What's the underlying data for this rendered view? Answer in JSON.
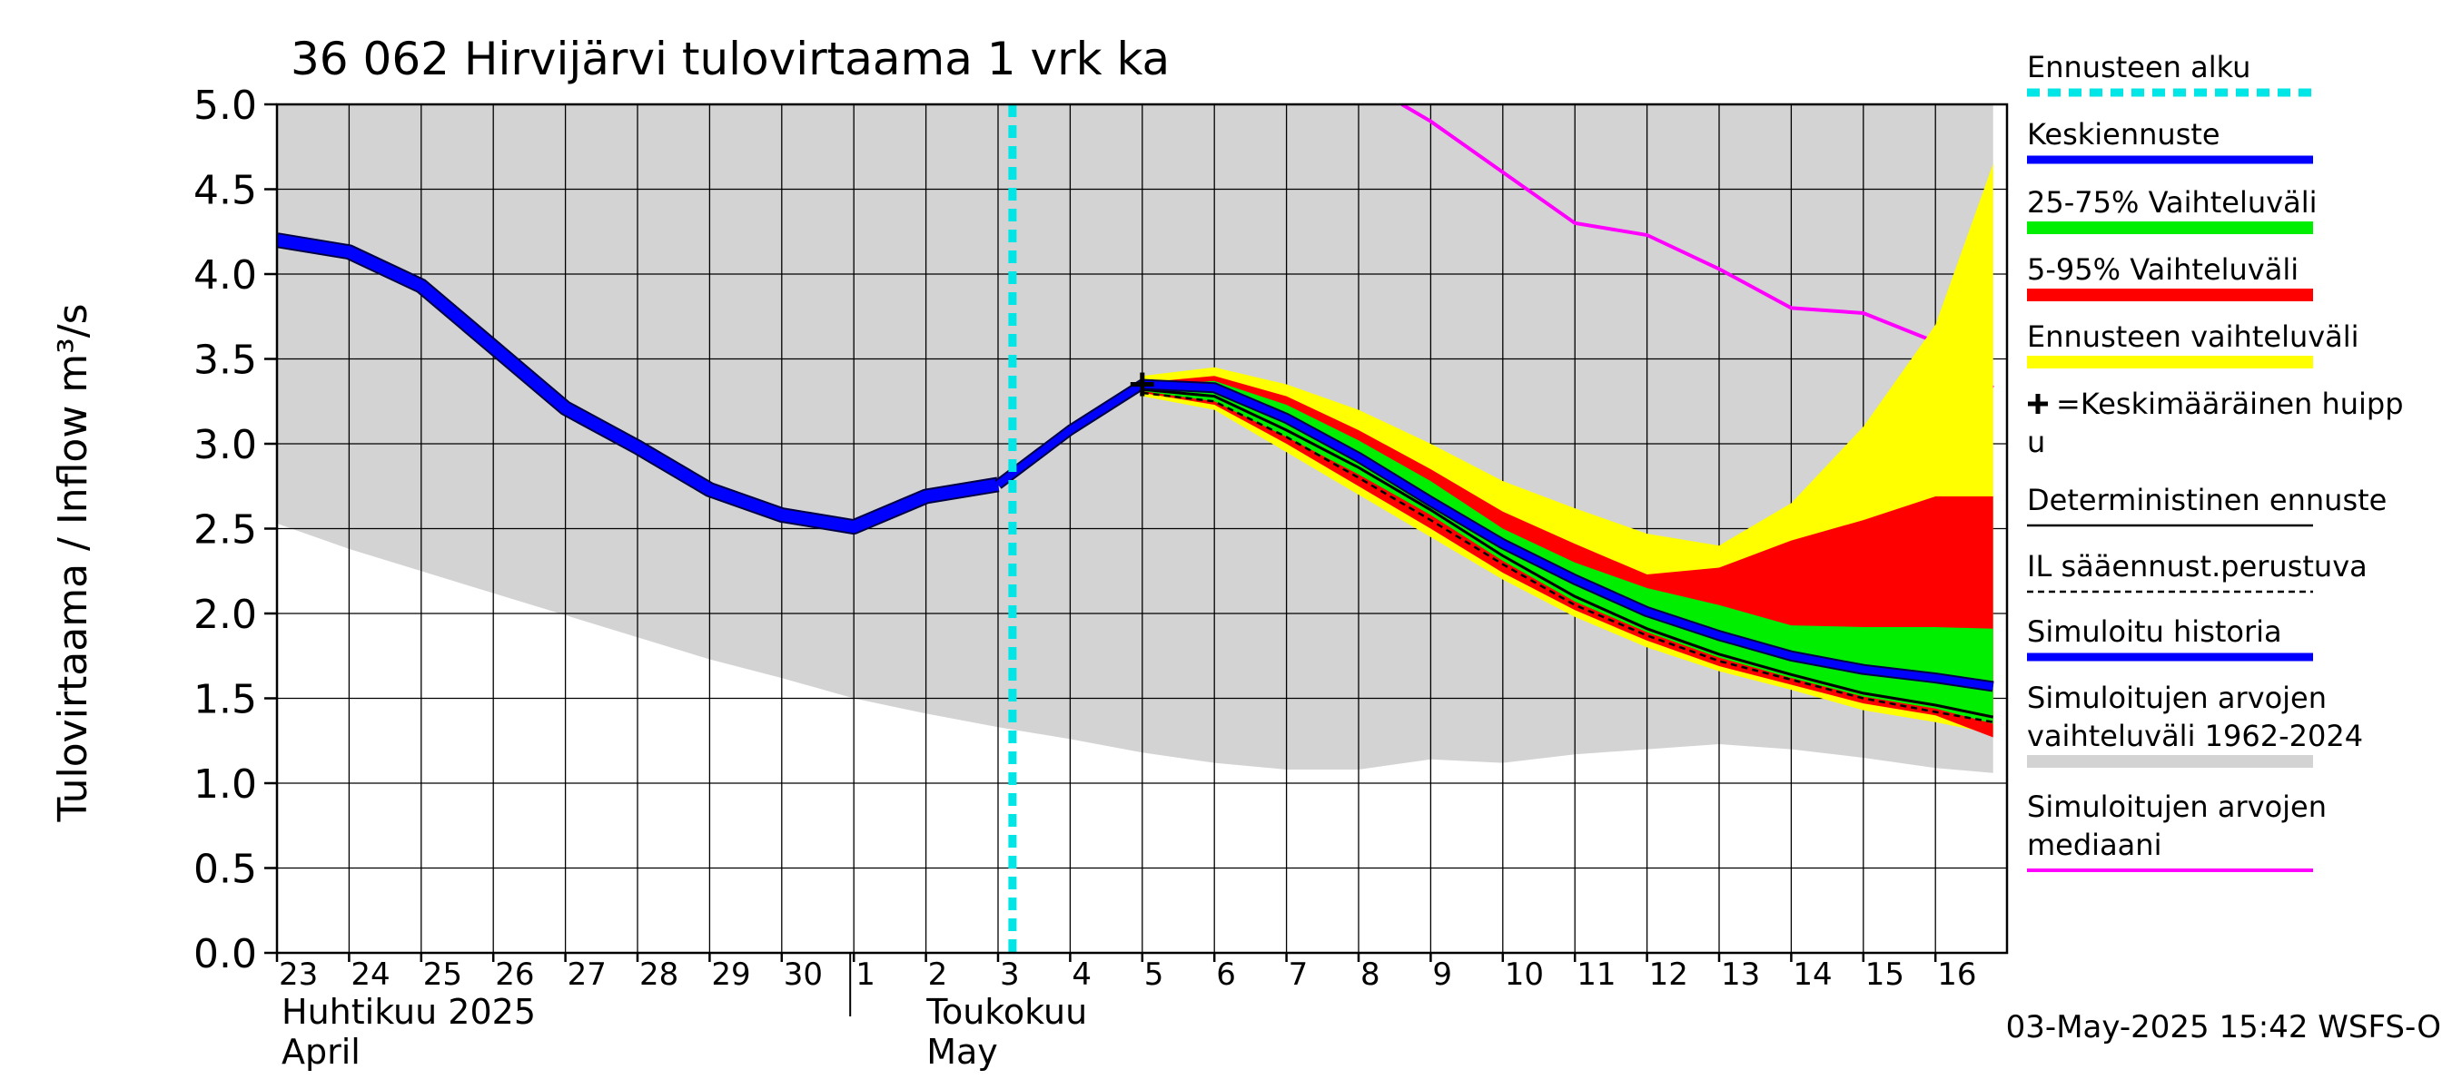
{
  "chart_data": {
    "type": "area",
    "title": "36 062 Hirvijärvi tulovirtaama 1 vrk ka",
    "ylabel": "Tulovirtaama / Inflow   m³/s",
    "ylim": [
      0,
      5
    ],
    "y_ticks": [
      "0.0",
      "0.5",
      "1.0",
      "1.5",
      "2.0",
      "2.5",
      "3.0",
      "3.5",
      "4.0",
      "4.5",
      "5.0"
    ],
    "x_day_labels": [
      "23",
      "24",
      "25",
      "26",
      "27",
      "28",
      "29",
      "30",
      "1",
      "2",
      "3",
      "4",
      "5",
      "6",
      "7",
      "8",
      "9",
      "10",
      "11",
      "12",
      "13",
      "14",
      "15",
      "16"
    ],
    "month_labels": [
      {
        "fi": "Huhtikuu  2025",
        "en": "April"
      },
      {
        "fi": "Toukokuu",
        "en": "May"
      }
    ],
    "forecast_start_day": 10.2,
    "grid": true,
    "series": {
      "hist_range": {
        "x": [
          0,
          1,
          2,
          3,
          4,
          5,
          6,
          7,
          8,
          9,
          10,
          11,
          12,
          13,
          14,
          15,
          16,
          17,
          18,
          19,
          20,
          21,
          22,
          23,
          23.8
        ],
        "upper": [
          5,
          5,
          5,
          5,
          5,
          5,
          5,
          5,
          5,
          5,
          5,
          5,
          5,
          5,
          5,
          5,
          5,
          5,
          5,
          5,
          5,
          5,
          5,
          5,
          5
        ],
        "lower": [
          2.53,
          2.38,
          2.25,
          2.12,
          1.99,
          1.86,
          1.73,
          1.62,
          1.5,
          1.41,
          1.33,
          1.26,
          1.18,
          1.12,
          1.08,
          1.08,
          1.14,
          1.12,
          1.17,
          1.2,
          1.23,
          1.2,
          1.15,
          1.09,
          1.06
        ]
      },
      "median": {
        "x": [
          15.6,
          16,
          17,
          18,
          19,
          20,
          21,
          22,
          23,
          23.8
        ],
        "y": [
          5.0,
          4.9,
          4.6,
          4.3,
          4.23,
          4.03,
          3.8,
          3.77,
          3.6,
          3.33
        ]
      },
      "forecast_range": {
        "x": [
          12,
          13,
          14,
          15,
          16,
          17,
          18,
          19,
          20,
          21,
          22,
          23,
          23.8
        ],
        "upper": [
          3.4,
          3.45,
          3.35,
          3.2,
          3.0,
          2.78,
          2.62,
          2.47,
          2.4,
          2.65,
          3.1,
          3.7,
          4.65
        ],
        "lower": [
          3.28,
          3.2,
          2.95,
          2.7,
          2.45,
          2.2,
          1.98,
          1.8,
          1.66,
          1.55,
          1.43,
          1.36,
          1.29
        ]
      },
      "range_5_95": {
        "x": [
          12,
          13,
          14,
          15,
          16,
          17,
          18,
          19,
          20,
          21,
          22,
          23,
          23.8
        ],
        "upper": [
          3.36,
          3.4,
          3.28,
          3.08,
          2.85,
          2.6,
          2.41,
          2.23,
          2.27,
          2.43,
          2.55,
          2.69,
          2.69
        ],
        "lower": [
          3.3,
          3.23,
          3.0,
          2.75,
          2.5,
          2.24,
          2.02,
          1.84,
          1.69,
          1.58,
          1.47,
          1.4,
          1.27
        ]
      },
      "range_25_75": {
        "x": [
          12,
          13,
          14,
          15,
          16,
          17,
          18,
          19,
          20,
          21,
          22,
          23,
          23.8
        ],
        "upper": [
          3.34,
          3.37,
          3.23,
          3.02,
          2.78,
          2.5,
          2.3,
          2.15,
          2.05,
          1.93,
          1.92,
          1.92,
          1.91
        ],
        "lower": [
          3.31,
          3.25,
          3.04,
          2.82,
          2.58,
          2.31,
          2.07,
          1.89,
          1.74,
          1.62,
          1.51,
          1.44,
          1.35
        ]
      },
      "simulated_history": {
        "x": [
          0,
          1,
          2,
          3,
          4,
          5,
          6,
          7,
          8,
          9,
          10
        ],
        "y": [
          4.2,
          4.13,
          3.93,
          3.57,
          3.21,
          2.98,
          2.73,
          2.58,
          2.51,
          2.69,
          2.76
        ]
      },
      "mean_forecast": {
        "x": [
          10,
          11,
          12,
          13,
          14,
          15,
          16,
          17,
          18,
          19,
          20,
          21,
          22,
          23,
          23.8
        ],
        "y": [
          2.76,
          3.08,
          3.35,
          3.33,
          3.15,
          2.92,
          2.66,
          2.41,
          2.2,
          2.01,
          1.87,
          1.75,
          1.67,
          1.62,
          1.57
        ]
      },
      "deterministic": {
        "x": [
          12,
          13,
          14,
          15,
          16,
          17,
          18,
          19,
          20,
          21,
          22,
          23,
          23.8
        ],
        "y": [
          3.32,
          3.28,
          3.08,
          2.86,
          2.61,
          2.34,
          2.1,
          1.91,
          1.76,
          1.64,
          1.53,
          1.46,
          1.39
        ]
      },
      "il_based": {
        "x": [
          12,
          13,
          14,
          15,
          16,
          17,
          18,
          19,
          20,
          21,
          22,
          23,
          23.8
        ],
        "y": [
          3.3,
          3.25,
          3.04,
          2.8,
          2.55,
          2.29,
          2.05,
          1.87,
          1.72,
          1.61,
          1.5,
          1.42,
          1.36
        ]
      },
      "mean_peak": {
        "x": 12,
        "y": 3.35
      }
    },
    "colors": {
      "hist_range": "#d3d3d3",
      "forecast_range": "#ffff00",
      "range_5_95": "#ff0000",
      "range_25_75": "#00ee00",
      "mean_forecast": "#0000ff",
      "simulated_history": "#0000ff",
      "median": "#ff00ff",
      "forecast_start": "#00e5e5",
      "deterministic": "#000000",
      "il_based": "#000000"
    },
    "legend": {
      "placement": "right",
      "entries": [
        {
          "key": "forecast_start",
          "label": "Ennusteen alku"
        },
        {
          "key": "mean_forecast",
          "label": "Keskiennuste"
        },
        {
          "key": "range_25_75",
          "label": "25-75% Vaihteluväli"
        },
        {
          "key": "range_5_95",
          "label": "5-95% Vaihteluväli"
        },
        {
          "key": "forecast_range",
          "label": "Ennusteen vaihteluväli"
        },
        {
          "key": "mean_peak",
          "label": "=Keskimääräinen huipp",
          "label2": "u"
        },
        {
          "key": "deterministic",
          "label": "Deterministinen ennuste"
        },
        {
          "key": "il_based",
          "label": "IL sääennust.perustuva"
        },
        {
          "key": "simulated_history",
          "label": "Simuloitu historia"
        },
        {
          "key": "hist_range",
          "label": "Simuloitujen arvojen",
          "label2": "vaihteluväli 1962-2024"
        },
        {
          "key": "median",
          "label": "Simuloitujen arvojen",
          "label2": "mediaani"
        }
      ]
    },
    "footer": "03-May-2025 15:42 WSFS-O"
  }
}
